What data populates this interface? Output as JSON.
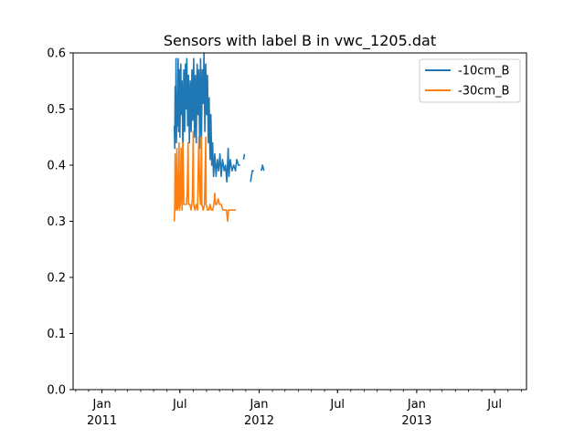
{
  "chart_data": {
    "type": "line",
    "title": "Sensors with label B in vwc_1205.dat",
    "xlabel": "",
    "ylabel": "",
    "xlim": [
      "2010-10-26",
      "2013-09-13"
    ],
    "ylim": [
      0,
      0.6
    ],
    "yticks": [
      0.0,
      0.1,
      0.2,
      0.3,
      0.4,
      0.5,
      0.6
    ],
    "ytick_labels": [
      "0.0",
      "0.1",
      "0.2",
      "0.3",
      "0.4",
      "0.5",
      "0.6"
    ],
    "xticks": [
      {
        "date": "2011-01-01",
        "label": "Jan",
        "sublabel": "2011"
      },
      {
        "date": "2011-07-01",
        "label": "Jul",
        "sublabel": ""
      },
      {
        "date": "2012-01-01",
        "label": "Jan",
        "sublabel": "2012"
      },
      {
        "date": "2012-07-01",
        "label": "Jul",
        "sublabel": ""
      },
      {
        "date": "2013-01-01",
        "label": "Jan",
        "sublabel": "2013"
      },
      {
        "date": "2013-07-01",
        "label": "Jul",
        "sublabel": ""
      }
    ],
    "legend_position": "top-right",
    "grid": false,
    "series": [
      {
        "name": "-10cm_B",
        "color": "#1f77b4",
        "points": [
          [
            "2011-06-18",
            0.47
          ],
          [
            "2011-06-19",
            0.43
          ],
          [
            "2011-06-20",
            0.54
          ],
          [
            "2011-06-21",
            0.45
          ],
          [
            "2011-06-22",
            0.59
          ],
          [
            "2011-06-23",
            0.44
          ],
          [
            "2011-06-24",
            0.52
          ],
          [
            "2011-06-25",
            0.47
          ],
          [
            "2011-06-27",
            0.59
          ],
          [
            "2011-06-28",
            0.46
          ],
          [
            "2011-06-30",
            0.57
          ],
          [
            "2011-07-01",
            0.45
          ],
          [
            "2011-07-03",
            0.58
          ],
          [
            "2011-07-04",
            0.49
          ],
          [
            "2011-07-06",
            0.55
          ],
          [
            "2011-07-08",
            0.42
          ],
          [
            "2011-07-10",
            0.57
          ],
          [
            "2011-07-12",
            0.46
          ],
          [
            "2011-07-14",
            0.58
          ],
          [
            "2011-07-15",
            0.5
          ],
          [
            "2011-07-17",
            0.59
          ],
          [
            "2011-07-19",
            0.47
          ],
          [
            "2011-07-21",
            0.56
          ],
          [
            "2011-07-23",
            0.44
          ],
          [
            "2011-07-25",
            0.55
          ],
          [
            "2011-07-27",
            0.46
          ],
          [
            "2011-07-29",
            0.57
          ],
          [
            "2011-07-31",
            0.48
          ],
          [
            "2011-08-02",
            0.59
          ],
          [
            "2011-08-04",
            0.45
          ],
          [
            "2011-08-06",
            0.56
          ],
          [
            "2011-08-08",
            0.44
          ],
          [
            "2011-08-10",
            0.58
          ],
          [
            "2011-08-12",
            0.49
          ],
          [
            "2011-08-14",
            0.57
          ],
          [
            "2011-08-16",
            0.43
          ],
          [
            "2011-08-18",
            0.59
          ],
          [
            "2011-08-20",
            0.45
          ],
          [
            "2011-08-22",
            0.57
          ],
          [
            "2011-08-24",
            0.51
          ],
          [
            "2011-08-26",
            0.6
          ],
          [
            "2011-08-28",
            0.46
          ],
          [
            "2011-08-30",
            0.58
          ],
          [
            "2011-09-01",
            0.49
          ],
          [
            "2011-09-03",
            0.56
          ],
          [
            "2011-09-05",
            0.44
          ],
          [
            "2011-09-07",
            0.52
          ],
          [
            "2011-09-09",
            0.41
          ],
          [
            "2011-09-11",
            0.49
          ],
          [
            "2011-09-13",
            0.4
          ],
          [
            "2011-09-15",
            0.44
          ],
          [
            "2011-09-17",
            0.38
          ],
          [
            "2011-09-20",
            0.42
          ],
          [
            "2011-09-23",
            0.38
          ],
          [
            "2011-09-26",
            0.41
          ],
          [
            "2011-09-29",
            0.39
          ],
          [
            "2011-10-02",
            0.42
          ],
          [
            "2011-10-05",
            0.38
          ],
          [
            "2011-10-08",
            0.41
          ],
          [
            "2011-10-12",
            0.39
          ],
          [
            "2011-10-15",
            0.4
          ],
          [
            "2011-10-18",
            0.37
          ],
          [
            "2011-10-21",
            0.43
          ],
          [
            "2011-10-23",
            0.38
          ],
          [
            "2011-10-26",
            0.41
          ],
          [
            "2011-10-30",
            0.39
          ],
          [
            "2011-11-03",
            0.4
          ],
          [
            "2011-11-07",
            0.39
          ],
          [
            "2011-11-10",
            0.41
          ],
          [
            "2011-11-14",
            0.4
          ],
          [
            "2011-11-18",
            0.4
          ],
          null,
          [
            "2011-11-26",
            0.41
          ],
          [
            "2011-11-28",
            0.42
          ],
          null,
          [
            "2011-12-12",
            0.37
          ],
          [
            "2011-12-16",
            0.39
          ],
          [
            "2011-12-20",
            0.39
          ],
          null,
          [
            "2012-01-06",
            0.39
          ],
          [
            "2012-01-09",
            0.4
          ],
          [
            "2012-01-12",
            0.39
          ]
        ]
      },
      {
        "name": "-30cm_B",
        "color": "#ff7f0e",
        "points": [
          [
            "2011-06-18",
            0.3
          ],
          [
            "2011-06-19",
            0.33
          ],
          [
            "2011-06-20",
            0.42
          ],
          [
            "2011-06-21",
            0.32
          ],
          [
            "2011-06-23",
            0.33
          ],
          [
            "2011-06-24",
            0.43
          ],
          [
            "2011-06-25",
            0.32
          ],
          [
            "2011-06-27",
            0.33
          ],
          [
            "2011-06-29",
            0.44
          ],
          [
            "2011-06-30",
            0.32
          ],
          [
            "2011-07-02",
            0.33
          ],
          [
            "2011-07-04",
            0.43
          ],
          [
            "2011-07-06",
            0.32
          ],
          [
            "2011-07-08",
            0.44
          ],
          [
            "2011-07-10",
            0.33
          ],
          [
            "2011-07-13",
            0.33
          ],
          [
            "2011-07-16",
            0.33
          ],
          [
            "2011-07-18",
            0.35
          ],
          [
            "2011-07-20",
            0.44
          ],
          [
            "2011-07-21",
            0.33
          ],
          [
            "2011-07-24",
            0.33
          ],
          [
            "2011-07-27",
            0.32
          ],
          [
            "2011-07-30",
            0.34
          ],
          [
            "2011-08-01",
            0.46
          ],
          [
            "2011-08-02",
            0.33
          ],
          [
            "2011-08-05",
            0.32
          ],
          [
            "2011-08-08",
            0.33
          ],
          [
            "2011-08-11",
            0.32
          ],
          [
            "2011-08-14",
            0.45
          ],
          [
            "2011-08-16",
            0.35
          ],
          [
            "2011-08-18",
            0.33
          ],
          [
            "2011-08-20",
            0.45
          ],
          [
            "2011-08-21",
            0.33
          ],
          [
            "2011-08-24",
            0.32
          ],
          [
            "2011-08-27",
            0.33
          ],
          [
            "2011-08-30",
            0.45
          ],
          [
            "2011-08-31",
            0.33
          ],
          [
            "2011-09-03",
            0.32
          ],
          [
            "2011-09-06",
            0.32
          ],
          [
            "2011-09-09",
            0.33
          ],
          [
            "2011-09-12",
            0.32
          ],
          [
            "2011-09-15",
            0.32
          ],
          [
            "2011-09-18",
            0.33
          ],
          [
            "2011-09-20",
            0.35
          ],
          [
            "2011-09-22",
            0.33
          ],
          [
            "2011-09-25",
            0.33
          ],
          [
            "2011-09-28",
            0.34
          ],
          [
            "2011-10-01",
            0.33
          ],
          [
            "2011-10-05",
            0.33
          ],
          [
            "2011-10-09",
            0.32
          ],
          [
            "2011-10-13",
            0.32
          ],
          [
            "2011-10-17",
            0.32
          ],
          [
            "2011-10-20",
            0.3
          ],
          [
            "2011-10-22",
            0.32
          ],
          [
            "2011-10-27",
            0.32
          ],
          [
            "2011-11-02",
            0.32
          ],
          [
            "2011-11-08",
            0.32
          ]
        ]
      }
    ]
  }
}
